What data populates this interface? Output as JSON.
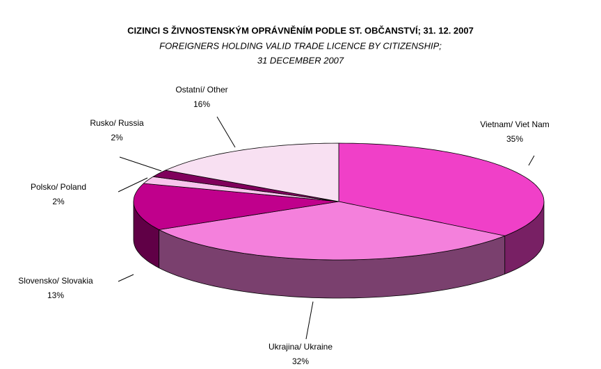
{
  "chart_data": {
    "type": "pie3d",
    "title": "CIZINCI S ŽIVNOSTENSKÝM OPRÁVNĚNÍM PODLE ST. OBČANSTVÍ; 31. 12. 2007",
    "subtitle": [
      "FOREIGNERS HOLDING VALID TRADE LICENCE BY CITIZENSHIP;",
      "31 DECEMBER 2007"
    ],
    "categories": [
      "Vietnam/ Viet Nam",
      "Ukrajina/ Ukraine",
      "Slovensko/ Slovakia",
      "Polsko/ Poland",
      "Rusko/ Russia",
      "Ostatní/ Other"
    ],
    "values": [
      35,
      32,
      13,
      2,
      2,
      16
    ],
    "value_labels": [
      "35%",
      "32%",
      "13%",
      "2%",
      "2%",
      "16%"
    ],
    "colors": [
      "#f040c8",
      "#f480dc",
      "#c0008c",
      "#f8c4ec",
      "#80005c",
      "#f8e0f2"
    ]
  }
}
